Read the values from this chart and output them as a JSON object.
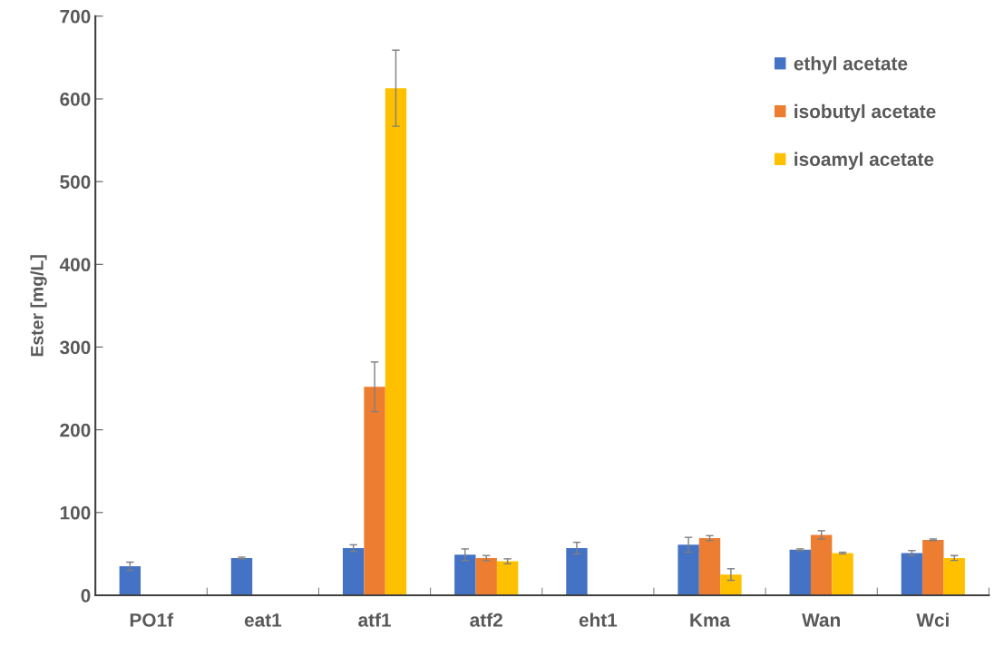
{
  "chart_data": {
    "type": "bar",
    "ylabel": "Ester [mg/L]",
    "categories": [
      "PO1f",
      "eat1",
      "atf1",
      "atf2",
      "eht1",
      "Kma",
      "Wan",
      "Wci"
    ],
    "series": [
      {
        "name": "ethyl acetate",
        "color": "#4472c4",
        "values": [
          35,
          45,
          57,
          49,
          57,
          61,
          55,
          51
        ],
        "errors": [
          5,
          1,
          4,
          7,
          7,
          9,
          1,
          3
        ]
      },
      {
        "name": "isobutyl acetate",
        "color": "#ed7d31",
        "values": [
          null,
          null,
          252,
          45,
          null,
          69,
          73,
          67
        ],
        "errors": [
          null,
          null,
          30,
          3,
          null,
          3,
          5,
          1
        ]
      },
      {
        "name": "isoamyl acetate",
        "color": "#ffc000",
        "values": [
          null,
          null,
          613,
          41,
          null,
          25,
          51,
          45
        ],
        "errors": [
          null,
          null,
          46,
          3,
          null,
          7,
          1,
          3
        ]
      }
    ],
    "ylim": [
      0,
      700
    ],
    "yticks": [
      0,
      100,
      200,
      300,
      400,
      500,
      600,
      700
    ],
    "grid": false,
    "legend": "top right"
  }
}
